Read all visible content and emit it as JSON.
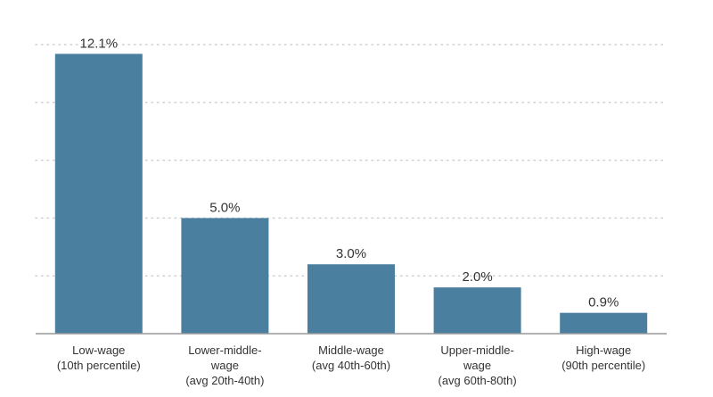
{
  "chart_data": {
    "type": "bar",
    "categories": [
      [
        "Low-wage",
        "(10th percentile)"
      ],
      [
        "Lower-middle-",
        "wage",
        "(avg 20th-40th)"
      ],
      [
        "Middle-wage",
        "(avg 40th-60th)"
      ],
      [
        "Upper-middle-",
        "wage",
        "(avg 60th-80th)"
      ],
      [
        "High-wage",
        "(90th percentile)"
      ]
    ],
    "values": [
      12.1,
      5.0,
      3.0,
      2.0,
      0.9
    ],
    "value_labels": [
      "12.1%",
      "5.0%",
      "3.0%",
      "2.0%",
      "0.9%"
    ],
    "ylim": [
      0,
      12.5
    ],
    "grid": true,
    "bar_color": "#4a7fa0",
    "grid_color": "#d0d0d0",
    "axis_color": "#999999"
  }
}
